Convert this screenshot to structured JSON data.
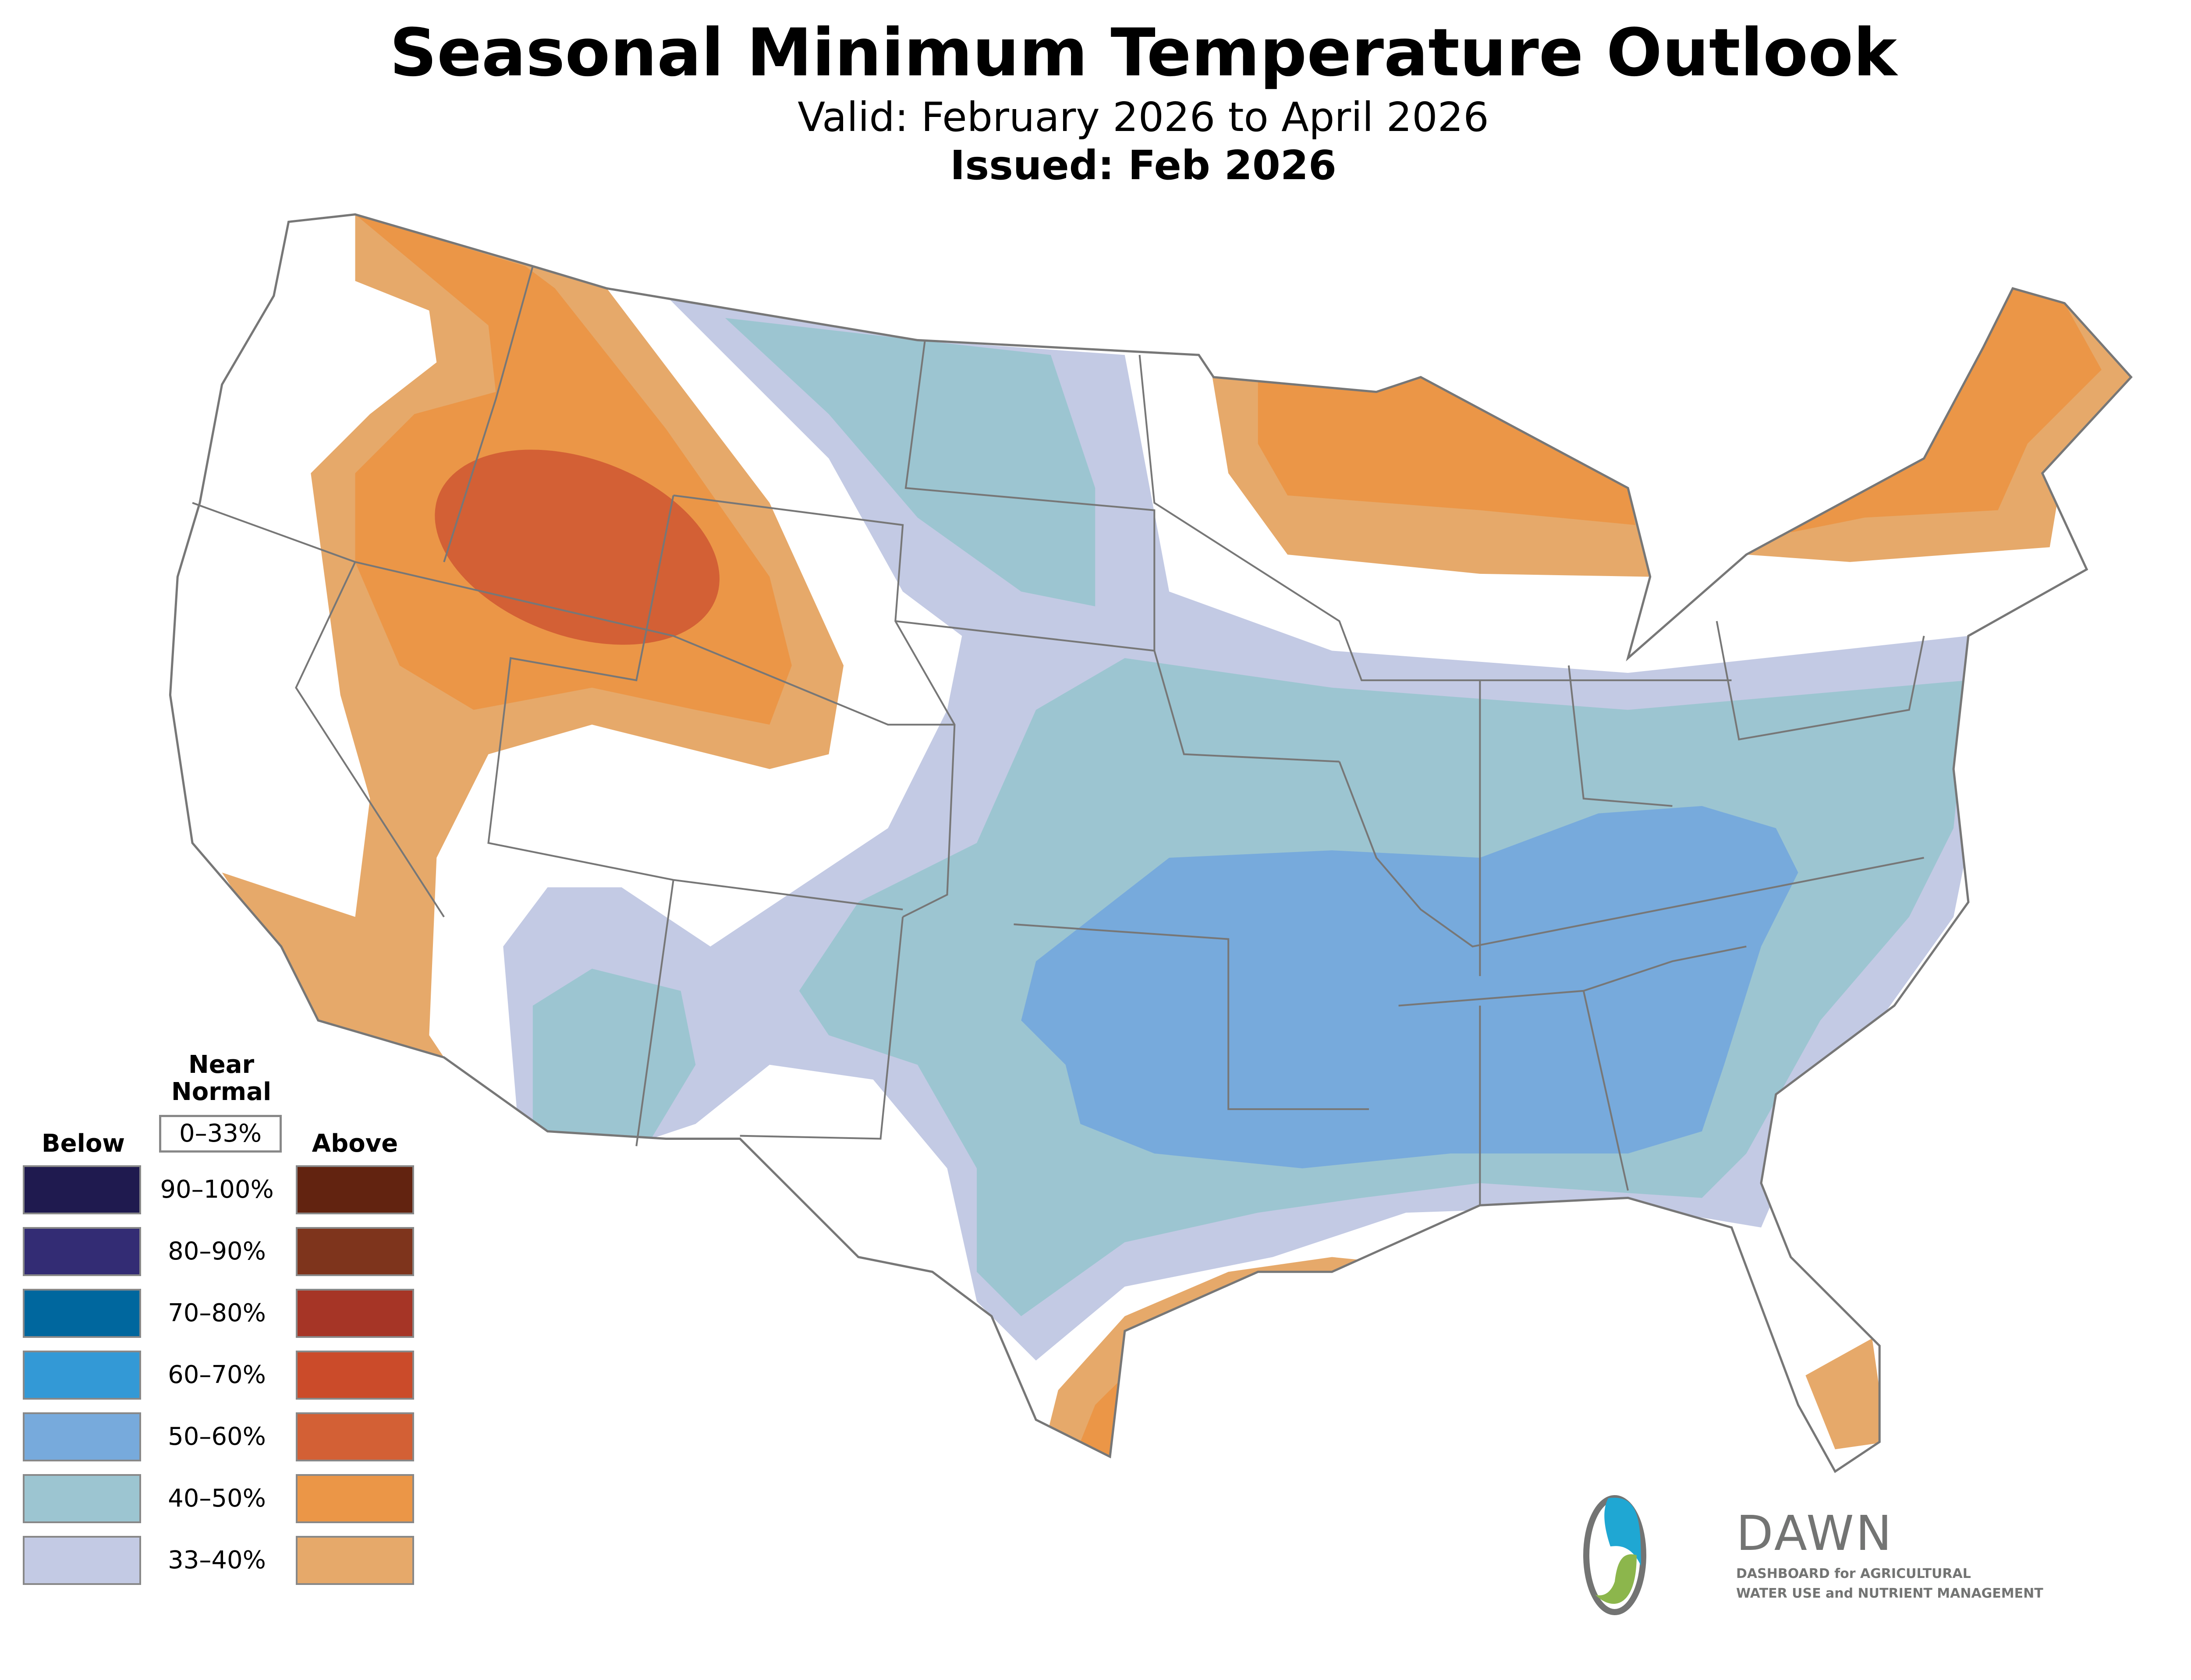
{
  "header": {
    "title": "Seasonal Minimum Temperature Outlook",
    "valid": "Valid: February 2026 to April 2026",
    "issued": "Issued: Feb 2026"
  },
  "legend": {
    "below_label": "Below",
    "above_label": "Above",
    "near_normal_label_1": "Near",
    "near_normal_label_2": "Normal",
    "near_normal_range": "0–33%",
    "rows": [
      {
        "range": "90–100%",
        "below_color": "#1f1a4f",
        "above_color": "#622310"
      },
      {
        "range": "80–90%",
        "below_color": "#332c74",
        "above_color": "#7e341c"
      },
      {
        "range": "70–80%",
        "below_color": "#00679e",
        "above_color": "#a63526"
      },
      {
        "range": "60–70%",
        "below_color": "#3399d6",
        "above_color": "#cb4b2a"
      },
      {
        "range": "50–60%",
        "below_color": "#77aadc",
        "above_color": "#d36035"
      },
      {
        "range": "40–50%",
        "below_color": "#9cc5d1",
        "above_color": "#eb9647"
      },
      {
        "range": "33–40%",
        "below_color": "#c3cae4",
        "above_color": "#e6a96a"
      }
    ]
  },
  "logo": {
    "name": "DAWN",
    "tagline_1": "DASHBOARD for AGRICULTURAL",
    "tagline_2": "WATER USE and NUTRIENT MANAGEMENT"
  }
}
